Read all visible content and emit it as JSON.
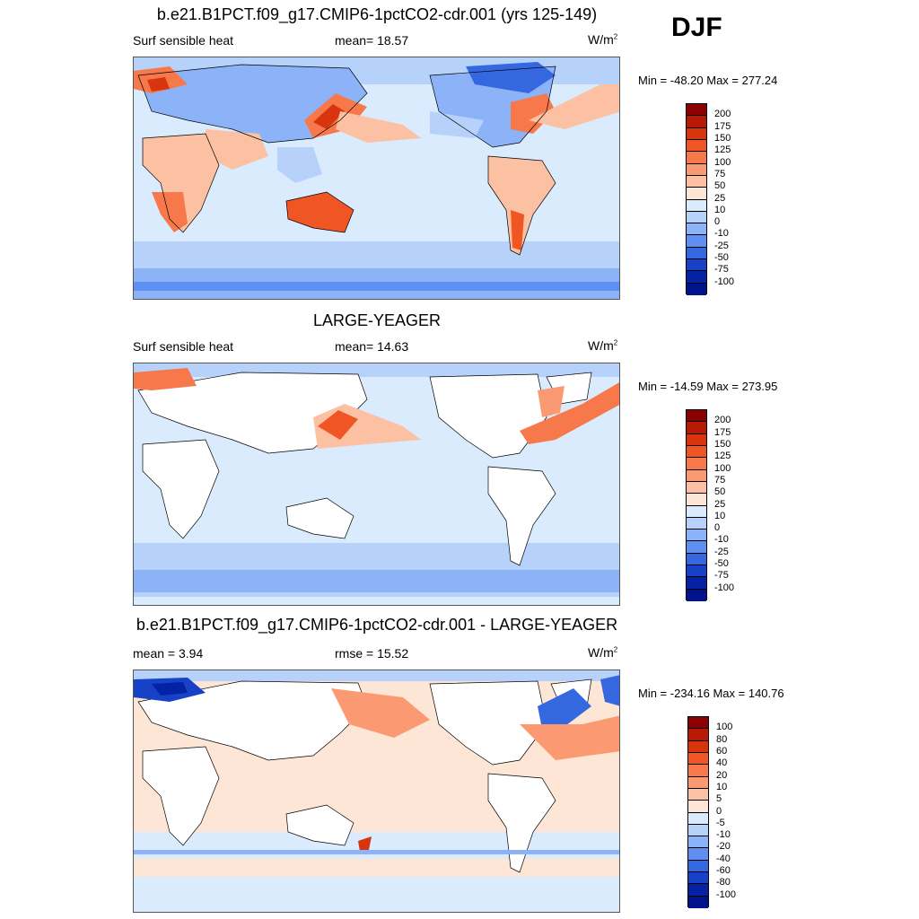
{
  "season": "DJF",
  "panels": [
    {
      "title": "b.e21.B1PCT.f09_g17.CMIP6-1pctCO2-cdr.001 (yrs 125-149)",
      "left_label": "Surf sensible heat",
      "center_label": "mean=  18.57",
      "units": "W/m",
      "units_sup": "2",
      "minmax": "Min = -48.20 Max = 277.24",
      "colorbar_levels": [
        "200",
        "175",
        "150",
        "125",
        "100",
        "75",
        "50",
        "25",
        "10",
        "0",
        "-10",
        "-25",
        "-50",
        "-75",
        "-100"
      ],
      "colorbar_colors": [
        "#8b0000",
        "#b81a06",
        "#d8350f",
        "#ef5624",
        "#f7784a",
        "#fb9a72",
        "#fcc0a2",
        "#fde6d5",
        "#d9ebfd",
        "#b6d2fb",
        "#8cb3f7",
        "#5f8ff0",
        "#3568e0",
        "#1741c7",
        "#0422a3",
        "#00138a"
      ]
    },
    {
      "title": "LARGE-YEAGER",
      "left_label": "Surf sensible heat",
      "center_label": "mean=  14.63",
      "units": "W/m",
      "units_sup": "2",
      "minmax": "Min = -14.59 Max = 273.95",
      "colorbar_levels": [
        "200",
        "175",
        "150",
        "125",
        "100",
        "75",
        "50",
        "25",
        "10",
        "0",
        "-10",
        "-25",
        "-50",
        "-75",
        "-100"
      ],
      "colorbar_colors": [
        "#8b0000",
        "#b81a06",
        "#d8350f",
        "#ef5624",
        "#f7784a",
        "#fb9a72",
        "#fcc0a2",
        "#fde6d5",
        "#d9ebfd",
        "#b6d2fb",
        "#8cb3f7",
        "#5f8ff0",
        "#3568e0",
        "#1741c7",
        "#0422a3",
        "#00138a"
      ]
    },
    {
      "title": "b.e21.B1PCT.f09_g17.CMIP6-1pctCO2-cdr.001 - LARGE-YEAGER",
      "left_label": "mean =   3.94",
      "center_label": "rmse =   15.52",
      "units": "W/m",
      "units_sup": "2",
      "minmax": "Min = -234.16 Max = 140.76",
      "colorbar_levels": [
        "100",
        "80",
        "60",
        "40",
        "20",
        "10",
        "5",
        "0",
        "-5",
        "-10",
        "-20",
        "-40",
        "-60",
        "-80",
        "-100"
      ],
      "colorbar_colors": [
        "#8b0000",
        "#b81a06",
        "#d8350f",
        "#ef5624",
        "#f7784a",
        "#fb9a72",
        "#fcc0a2",
        "#fde6d5",
        "#d9ebfd",
        "#b6d2fb",
        "#8cb3f7",
        "#5f8ff0",
        "#3568e0",
        "#1741c7",
        "#0422a3",
        "#00138a"
      ]
    }
  ]
}
